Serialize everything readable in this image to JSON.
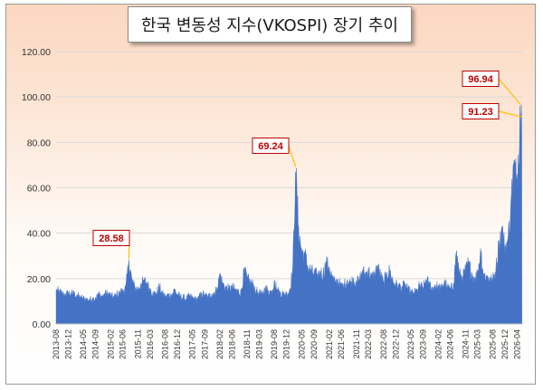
{
  "chart_data": {
    "type": "area",
    "title": "한국 변동성 지수(VKOSPI) 장기 추이",
    "series": [
      {
        "name": "",
        "points": [
          [
            "2013-08-01",
            15.2
          ],
          [
            "2013-09-01",
            14.6
          ],
          [
            "2013-10-01",
            13.8
          ],
          [
            "2013-11-01",
            13.2
          ],
          [
            "2013-12-01",
            14.1
          ],
          [
            "2014-01-01",
            13.6
          ],
          [
            "2014-02-01",
            13.9
          ],
          [
            "2014-03-01",
            12.8
          ],
          [
            "2014-04-01",
            12.1
          ],
          [
            "2014-05-01",
            11.6
          ],
          [
            "2014-06-01",
            11.2
          ],
          [
            "2014-07-01",
            10.9
          ],
          [
            "2014-08-01",
            11.4
          ],
          [
            "2014-09-01",
            11.8
          ],
          [
            "2014-10-01",
            13.6
          ],
          [
            "2014-11-01",
            12.4
          ],
          [
            "2014-12-01",
            13.5
          ],
          [
            "2015-01-01",
            13.9
          ],
          [
            "2015-02-01",
            12.9
          ],
          [
            "2015-03-01",
            12.2
          ],
          [
            "2015-04-01",
            13.2
          ],
          [
            "2015-05-01",
            14.1
          ],
          [
            "2015-06-01",
            15.2
          ],
          [
            "2015-07-01",
            16.1
          ],
          [
            "2015-08-01",
            28.58
          ],
          [
            "2015-09-01",
            19.8
          ],
          [
            "2015-10-01",
            16.4
          ],
          [
            "2015-11-01",
            15.8
          ],
          [
            "2015-12-01",
            17.9
          ],
          [
            "2016-01-01",
            19.6
          ],
          [
            "2016-02-01",
            18.4
          ],
          [
            "2016-03-01",
            15.6
          ],
          [
            "2016-04-01",
            14.1
          ],
          [
            "2016-05-01",
            13.6
          ],
          [
            "2016-06-01",
            16.9
          ],
          [
            "2016-07-01",
            13.8
          ],
          [
            "2016-08-01",
            12.4
          ],
          [
            "2016-09-01",
            13.1
          ],
          [
            "2016-10-01",
            12.9
          ],
          [
            "2016-11-01",
            15.6
          ],
          [
            "2016-12-01",
            13.2
          ],
          [
            "2017-01-01",
            12.4
          ],
          [
            "2017-02-01",
            11.8
          ],
          [
            "2017-03-01",
            11.4
          ],
          [
            "2017-04-01",
            12.6
          ],
          [
            "2017-05-01",
            11.9
          ],
          [
            "2017-06-01",
            11.2
          ],
          [
            "2017-07-01",
            11.6
          ],
          [
            "2017-08-01",
            13.9
          ],
          [
            "2017-09-01",
            13.1
          ],
          [
            "2017-10-01",
            12.2
          ],
          [
            "2017-11-01",
            13.4
          ],
          [
            "2017-12-01",
            13.8
          ],
          [
            "2018-01-01",
            15.6
          ],
          [
            "2018-02-01",
            22.6
          ],
          [
            "2018-03-01",
            18.1
          ],
          [
            "2018-04-01",
            16.4
          ],
          [
            "2018-05-01",
            15.9
          ],
          [
            "2018-06-01",
            16.8
          ],
          [
            "2018-07-01",
            15.4
          ],
          [
            "2018-08-01",
            14.9
          ],
          [
            "2018-09-01",
            14.2
          ],
          [
            "2018-10-01",
            24.4
          ],
          [
            "2018-11-01",
            20.6
          ],
          [
            "2018-12-01",
            18.9
          ],
          [
            "2019-01-01",
            17.6
          ],
          [
            "2019-02-01",
            14.8
          ],
          [
            "2019-03-01",
            14.1
          ],
          [
            "2019-04-01",
            13.2
          ],
          [
            "2019-05-01",
            16.4
          ],
          [
            "2019-06-01",
            14.9
          ],
          [
            "2019-07-01",
            14.4
          ],
          [
            "2019-08-01",
            19.6
          ],
          [
            "2019-09-01",
            15.2
          ],
          [
            "2019-10-01",
            14.1
          ],
          [
            "2019-11-01",
            13.6
          ],
          [
            "2019-12-01",
            13.8
          ],
          [
            "2020-01-01",
            15.2
          ],
          [
            "2020-02-01",
            24.8
          ],
          [
            "2020-03-01",
            69.24
          ],
          [
            "2020-04-01",
            42.6
          ],
          [
            "2020-05-01",
            32.4
          ],
          [
            "2020-06-01",
            31.8
          ],
          [
            "2020-07-01",
            25.6
          ],
          [
            "2020-08-01",
            24.2
          ],
          [
            "2020-09-01",
            22.8
          ],
          [
            "2020-10-01",
            22.1
          ],
          [
            "2020-11-01",
            23.4
          ],
          [
            "2020-12-01",
            22.6
          ],
          [
            "2021-01-01",
            27.8
          ],
          [
            "2021-02-01",
            25.1
          ],
          [
            "2021-03-01",
            21.6
          ],
          [
            "2021-04-01",
            18.4
          ],
          [
            "2021-05-01",
            19.8
          ],
          [
            "2021-06-01",
            16.9
          ],
          [
            "2021-07-01",
            17.8
          ],
          [
            "2021-08-01",
            19.4
          ],
          [
            "2021-09-01",
            18.6
          ],
          [
            "2021-10-01",
            20.4
          ],
          [
            "2021-11-01",
            18.9
          ],
          [
            "2021-12-01",
            19.6
          ],
          [
            "2022-01-01",
            23.9
          ],
          [
            "2022-02-01",
            22.4
          ],
          [
            "2022-03-01",
            24.6
          ],
          [
            "2022-04-01",
            20.8
          ],
          [
            "2022-05-01",
            22.4
          ],
          [
            "2022-06-01",
            26.2
          ],
          [
            "2022-07-01",
            21.9
          ],
          [
            "2022-08-01",
            18.6
          ],
          [
            "2022-09-01",
            22.8
          ],
          [
            "2022-10-01",
            24.1
          ],
          [
            "2022-11-01",
            19.6
          ],
          [
            "2022-12-01",
            17.9
          ],
          [
            "2023-01-01",
            17.2
          ],
          [
            "2023-02-01",
            16.4
          ],
          [
            "2023-03-01",
            18.1
          ],
          [
            "2023-04-01",
            15.6
          ],
          [
            "2023-05-01",
            14.4
          ],
          [
            "2023-06-01",
            13.9
          ],
          [
            "2023-07-01",
            15.2
          ],
          [
            "2023-08-01",
            17.6
          ],
          [
            "2023-09-01",
            16.2
          ],
          [
            "2023-10-01",
            19.8
          ],
          [
            "2023-11-01",
            18.4
          ],
          [
            "2023-12-01",
            16.1
          ],
          [
            "2024-01-01",
            17.4
          ],
          [
            "2024-02-01",
            16.8
          ],
          [
            "2024-03-01",
            15.9
          ],
          [
            "2024-04-01",
            19.2
          ],
          [
            "2024-05-01",
            16.6
          ],
          [
            "2024-06-01",
            15.8
          ],
          [
            "2024-07-01",
            17.6
          ],
          [
            "2024-08-01",
            32.8
          ],
          [
            "2024-09-01",
            22.4
          ],
          [
            "2024-10-01",
            21.1
          ],
          [
            "2024-11-01",
            24.2
          ],
          [
            "2024-12-01",
            27.9
          ],
          [
            "2025-01-01",
            22.6
          ],
          [
            "2025-02-01",
            20.4
          ],
          [
            "2025-03-01",
            22.8
          ],
          [
            "2025-04-01",
            33.6
          ],
          [
            "2025-05-01",
            22.2
          ],
          [
            "2025-06-01",
            21.4
          ],
          [
            "2025-07-01",
            20.6
          ],
          [
            "2025-08-01",
            19.9
          ],
          [
            "2025-09-01",
            24.8
          ],
          [
            "2025-10-01",
            36.4
          ],
          [
            "2025-11-01",
            43.2
          ],
          [
            "2025-12-01",
            34.6
          ],
          [
            "2026-01-01",
            37.8
          ],
          [
            "2026-02-01",
            55.6
          ],
          [
            "2026-03-01",
            72.4
          ],
          [
            "2026-04-01",
            63.8
          ],
          [
            "2026-05-01",
            96.94
          ],
          [
            "2026-05-20",
            91.23
          ]
        ]
      }
    ],
    "x_ticks": [
      "2013-08",
      "2013-12",
      "2014-05",
      "2014-09",
      "2015-02",
      "2015-06",
      "2015-11",
      "2016-03",
      "2016-08",
      "2016-12",
      "2017-05",
      "2017-09",
      "2018-02",
      "2018-06",
      "2018-11",
      "2019-03",
      "2019-08",
      "2019-12",
      "2020-05",
      "2020-09",
      "2021-02",
      "2021-06",
      "2021-11",
      "2022-03",
      "2022-08",
      "2022-12",
      "2023-05",
      "2023-09",
      "2024-02",
      "2024-06",
      "2024-11",
      "2025-03",
      "2025-08",
      "2025-12",
      "2026-04"
    ],
    "y_ticks": [
      "0.00",
      "20.00",
      "40.00",
      "60.00",
      "80.00",
      "100.00",
      "120.00"
    ],
    "ylim": [
      0,
      120
    ],
    "xlabel": "",
    "ylabel": "",
    "grid": true,
    "fill_color": "#4472c4",
    "callouts": [
      {
        "label": "28.58",
        "x": "2015-08-01",
        "y": 28.58
      },
      {
        "label": "69.24",
        "x": "2020-03-01",
        "y": 69.24
      },
      {
        "label": "96.94",
        "x": "2026-05-01",
        "y": 96.94
      },
      {
        "label": "91.23",
        "x": "2026-05-20",
        "y": 91.23
      }
    ],
    "callout_color": "#c00000",
    "leader_color": "#ffc000"
  }
}
